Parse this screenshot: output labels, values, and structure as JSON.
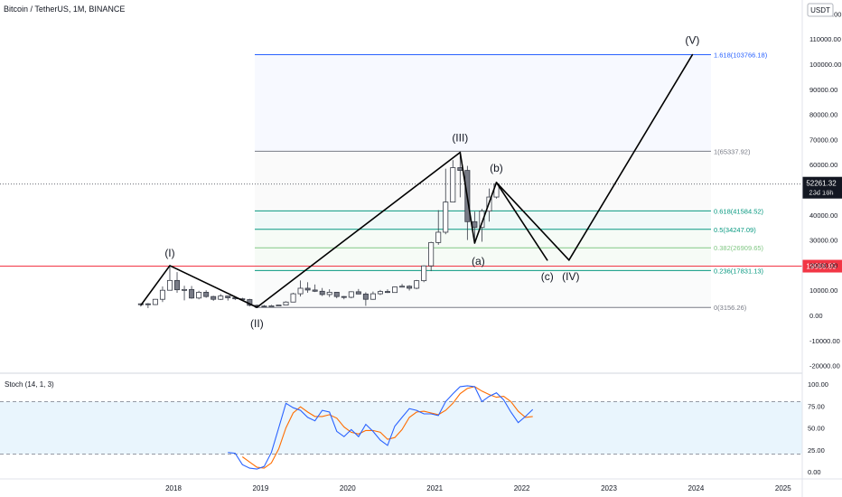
{
  "header": {
    "symbol_title": "Bitcoin / TetherUS, 1M, BINANCE",
    "currency_label": "USDT"
  },
  "colors": {
    "candle_up": "#ffffff",
    "candle_down": "#787b86",
    "candle_border": "#363a45",
    "wave_line": "#000000",
    "fib_top": "#2962ff",
    "fib_one": "#787b86",
    "fib_mid": "#089981",
    "fib_light": "#81c784",
    "fib_zero": "#787b86",
    "resistance": "#f23645",
    "stoch_k": "#2962ff",
    "stoch_d": "#ff6d00",
    "stoch_band": "#e3f2fd"
  },
  "price_axis": {
    "ticks": [
      "120000.00",
      "110000.00",
      "100000.00",
      "90000.00",
      "80000.00",
      "70000.00",
      "60000.00",
      "50000.00",
      "40000.00",
      "30000.00",
      "20000.00",
      "10000.00",
      "0.00",
      "-10000.00",
      "-20000.00"
    ],
    "current_price_label": "52261.32",
    "countdown_label": "23d 16h",
    "resistance_label": "19588.85"
  },
  "time_axis": {
    "ticks": [
      "2018",
      "2019",
      "2020",
      "2021",
      "2022",
      "2023",
      "2024",
      "2025"
    ]
  },
  "stoch": {
    "title": "Stoch (14, 1, 3)",
    "ticks": [
      "100.00",
      "75.00",
      "50.00",
      "25.00",
      "0.00"
    ]
  },
  "wave_labels": [
    "(I)",
    "(II)",
    "(III)",
    "(a)",
    "(b)",
    "(c)",
    "(IV)",
    "(V)"
  ],
  "fib_labels": [
    "1.618(103766.18)",
    "1(65337.92)",
    "0.618(41584.52)",
    "0.5(34247.09)",
    "0.382(26909.65)",
    "0.236(17831.13)",
    "0(3156.26)"
  ],
  "chart_data": {
    "type": "candlestick",
    "title": "Bitcoin / TetherUS, 1M, BINANCE",
    "ylim": [
      -20000,
      120000
    ],
    "fib_levels": [
      {
        "ratio": 1.618,
        "price": 103766.18
      },
      {
        "ratio": 1,
        "price": 65337.92
      },
      {
        "ratio": 0.618,
        "price": 41584.52
      },
      {
        "ratio": 0.5,
        "price": 34247.09
      },
      {
        "ratio": 0.382,
        "price": 26909.65
      },
      {
        "ratio": 0.236,
        "price": 17831.13
      },
      {
        "ratio": 0,
        "price": 3156.26
      }
    ],
    "resistance_price": 19588.85,
    "current_price": 52261.32,
    "candles": [
      {
        "t": "2017-08",
        "o": 4300,
        "h": 4800,
        "l": 3500,
        "c": 4600
      },
      {
        "t": "2017-09",
        "o": 4600,
        "h": 4900,
        "l": 2900,
        "c": 4300
      },
      {
        "t": "2017-10",
        "o": 4300,
        "h": 6500,
        "l": 4100,
        "c": 6400
      },
      {
        "t": "2017-11",
        "o": 6400,
        "h": 11500,
        "l": 5300,
        "c": 10000
      },
      {
        "t": "2017-12",
        "o": 10000,
        "h": 19800,
        "l": 10800,
        "c": 13900
      },
      {
        "t": "2018-01",
        "o": 13900,
        "h": 17200,
        "l": 9000,
        "c": 10200
      },
      {
        "t": "2018-02",
        "o": 10200,
        "h": 11800,
        "l": 6000,
        "c": 10300
      },
      {
        "t": "2018-03",
        "o": 10300,
        "h": 11700,
        "l": 6600,
        "c": 6900
      },
      {
        "t": "2018-04",
        "o": 6900,
        "h": 9800,
        "l": 6400,
        "c": 9200
      },
      {
        "t": "2018-05",
        "o": 9200,
        "h": 10000,
        "l": 7000,
        "c": 7500
      },
      {
        "t": "2018-06",
        "o": 7500,
        "h": 7800,
        "l": 5800,
        "c": 6400
      },
      {
        "t": "2018-07",
        "o": 6400,
        "h": 8500,
        "l": 6100,
        "c": 7700
      },
      {
        "t": "2018-08",
        "o": 7700,
        "h": 7800,
        "l": 5900,
        "c": 7000
      },
      {
        "t": "2018-09",
        "o": 7000,
        "h": 7400,
        "l": 6100,
        "c": 6600
      },
      {
        "t": "2018-10",
        "o": 6600,
        "h": 7000,
        "l": 6100,
        "c": 6300
      },
      {
        "t": "2018-11",
        "o": 6300,
        "h": 6600,
        "l": 3600,
        "c": 4000
      },
      {
        "t": "2018-12",
        "o": 4000,
        "h": 4300,
        "l": 3200,
        "c": 3700
      },
      {
        "t": "2019-01",
        "o": 3700,
        "h": 4100,
        "l": 3400,
        "c": 3400
      },
      {
        "t": "2019-02",
        "o": 3400,
        "h": 4200,
        "l": 3400,
        "c": 3800
      },
      {
        "t": "2019-03",
        "o": 3800,
        "h": 4100,
        "l": 3700,
        "c": 4100
      },
      {
        "t": "2019-04",
        "o": 4100,
        "h": 5600,
        "l": 4100,
        "c": 5300
      },
      {
        "t": "2019-05",
        "o": 5300,
        "h": 9000,
        "l": 5300,
        "c": 8600
      },
      {
        "t": "2019-06",
        "o": 8600,
        "h": 13900,
        "l": 7500,
        "c": 10800
      },
      {
        "t": "2019-07",
        "o": 10800,
        "h": 13200,
        "l": 9000,
        "c": 10100
      },
      {
        "t": "2019-08",
        "o": 10100,
        "h": 12300,
        "l": 9300,
        "c": 9600
      },
      {
        "t": "2019-09",
        "o": 9600,
        "h": 10900,
        "l": 7700,
        "c": 8300
      },
      {
        "t": "2019-10",
        "o": 8300,
        "h": 10400,
        "l": 7300,
        "c": 9200
      },
      {
        "t": "2019-11",
        "o": 9200,
        "h": 9300,
        "l": 6800,
        "c": 7500
      },
      {
        "t": "2019-12",
        "o": 7500,
        "h": 7700,
        "l": 6400,
        "c": 7200
      },
      {
        "t": "2020-01",
        "o": 7200,
        "h": 9600,
        "l": 6800,
        "c": 9400
      },
      {
        "t": "2020-02",
        "o": 9400,
        "h": 10500,
        "l": 8400,
        "c": 8500
      },
      {
        "t": "2020-03",
        "o": 8500,
        "h": 9200,
        "l": 3800,
        "c": 6400
      },
      {
        "t": "2020-04",
        "o": 6400,
        "h": 9500,
        "l": 6200,
        "c": 8600
      },
      {
        "t": "2020-05",
        "o": 8600,
        "h": 10100,
        "l": 8100,
        "c": 9500
      },
      {
        "t": "2020-06",
        "o": 9500,
        "h": 10400,
        "l": 8900,
        "c": 9100
      },
      {
        "t": "2020-07",
        "o": 9100,
        "h": 11400,
        "l": 9000,
        "c": 11300
      },
      {
        "t": "2020-08",
        "o": 11300,
        "h": 12500,
        "l": 11100,
        "c": 11600
      },
      {
        "t": "2020-09",
        "o": 11600,
        "h": 12000,
        "l": 9900,
        "c": 10800
      },
      {
        "t": "2020-10",
        "o": 10800,
        "h": 14100,
        "l": 10400,
        "c": 13800
      },
      {
        "t": "2020-11",
        "o": 13800,
        "h": 19900,
        "l": 13200,
        "c": 19700
      },
      {
        "t": "2020-12",
        "o": 19700,
        "h": 29300,
        "l": 17600,
        "c": 29000
      },
      {
        "t": "2021-01",
        "o": 29000,
        "h": 41900,
        "l": 28100,
        "c": 33100
      },
      {
        "t": "2021-02",
        "o": 33100,
        "h": 58400,
        "l": 32300,
        "c": 45100
      },
      {
        "t": "2021-03",
        "o": 45100,
        "h": 61800,
        "l": 45000,
        "c": 58800
      },
      {
        "t": "2021-04",
        "o": 58800,
        "h": 64900,
        "l": 47000,
        "c": 57700
      },
      {
        "t": "2021-05",
        "o": 57700,
        "h": 59500,
        "l": 30000,
        "c": 37300
      },
      {
        "t": "2021-06",
        "o": 37300,
        "h": 41300,
        "l": 28800,
        "c": 35000
      },
      {
        "t": "2021-07",
        "o": 35000,
        "h": 42400,
        "l": 29300,
        "c": 41500
      },
      {
        "t": "2021-08",
        "o": 41500,
        "h": 50500,
        "l": 37300,
        "c": 47100
      },
      {
        "t": "2021-09",
        "o": 47100,
        "h": 52900,
        "l": 46500,
        "c": 52261
      }
    ],
    "elliott_waves": [
      {
        "label": "(I)",
        "t": "2017-12",
        "price": 19800
      },
      {
        "label": "(II)",
        "t": "2018-12",
        "price": 3200
      },
      {
        "label": "(III)",
        "t": "2021-04",
        "price": 64900
      },
      {
        "label": "(a)",
        "t": "2021-06",
        "price": 28800
      },
      {
        "label": "(b)",
        "t": "2021-09",
        "price": 52900
      },
      {
        "label": "(c)",
        "t": "2022-04",
        "price": 22000
      },
      {
        "label": "(IV)",
        "t": "2022-07",
        "price": 22000
      },
      {
        "label": "(V)",
        "t": "2023-12",
        "price": 103766
      }
    ],
    "stochastic": {
      "name": "Stoch (14, 1, 3)",
      "ylim": [
        0,
        100
      ],
      "bands": [
        20,
        80
      ],
      "t_start": "2018-08",
      "k": [
        22,
        21,
        8,
        4,
        3,
        6,
        22,
        50,
        78,
        73,
        70,
        62,
        58,
        70,
        68,
        46,
        40,
        48,
        40,
        54,
        46,
        36,
        30,
        52,
        62,
        72,
        70,
        66,
        66,
        64,
        80,
        89,
        97,
        98,
        97,
        80,
        86,
        90,
        82,
        68,
        56,
        63,
        71
      ],
      "d": [
        null,
        null,
        17,
        11,
        5,
        4,
        10,
        26,
        50,
        67,
        74,
        68,
        63,
        63,
        65,
        61,
        51,
        45,
        43,
        47,
        47,
        45,
        37,
        39,
        48,
        62,
        68,
        69,
        67,
        65,
        70,
        78,
        89,
        95,
        97,
        92,
        88,
        85,
        86,
        80,
        69,
        62,
        63
      ]
    }
  }
}
